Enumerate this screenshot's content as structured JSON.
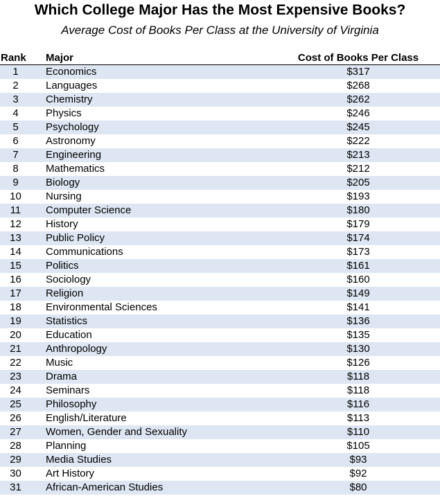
{
  "title": "Which College Major Has the Most Expensive Books?",
  "subtitle": "Average Cost of Books Per Class at the University of Virginia",
  "chart_data": {
    "type": "table",
    "columns": [
      "Rank",
      "Major",
      "Cost of Books Per Class"
    ],
    "rows": [
      {
        "rank": "1",
        "major": "Economics",
        "cost": "$317"
      },
      {
        "rank": "2",
        "major": "Languages",
        "cost": "$268"
      },
      {
        "rank": "3",
        "major": "Chemistry",
        "cost": "$262"
      },
      {
        "rank": "4",
        "major": "Physics",
        "cost": "$246"
      },
      {
        "rank": "5",
        "major": "Psychology",
        "cost": "$245"
      },
      {
        "rank": "6",
        "major": "Astronomy",
        "cost": "$222"
      },
      {
        "rank": "7",
        "major": "Engineering",
        "cost": "$213"
      },
      {
        "rank": "8",
        "major": "Mathematics",
        "cost": "$212"
      },
      {
        "rank": "9",
        "major": "Biology",
        "cost": "$205"
      },
      {
        "rank": "10",
        "major": "Nursing",
        "cost": "$193"
      },
      {
        "rank": "11",
        "major": "Computer Science",
        "cost": "$180"
      },
      {
        "rank": "12",
        "major": "History",
        "cost": "$179"
      },
      {
        "rank": "13",
        "major": "Public Policy",
        "cost": "$174"
      },
      {
        "rank": "14",
        "major": "Communications",
        "cost": "$173"
      },
      {
        "rank": "15",
        "major": "Politics",
        "cost": "$161"
      },
      {
        "rank": "16",
        "major": "Sociology",
        "cost": "$160"
      },
      {
        "rank": "17",
        "major": "Religion",
        "cost": "$149"
      },
      {
        "rank": "18",
        "major": "Environmental Sciences",
        "cost": "$141"
      },
      {
        "rank": "19",
        "major": "Statistics",
        "cost": "$136"
      },
      {
        "rank": "20",
        "major": "Education",
        "cost": "$135"
      },
      {
        "rank": "21",
        "major": "Anthropology",
        "cost": "$130"
      },
      {
        "rank": "22",
        "major": "Music",
        "cost": "$126"
      },
      {
        "rank": "23",
        "major": "Drama",
        "cost": "$118"
      },
      {
        "rank": "24",
        "major": "Seminars",
        "cost": "$118"
      },
      {
        "rank": "25",
        "major": "Philosophy",
        "cost": "$116"
      },
      {
        "rank": "26",
        "major": "English/Literature",
        "cost": "$113"
      },
      {
        "rank": "27",
        "major": "Women, Gender and Sexuality",
        "cost": "$110"
      },
      {
        "rank": "28",
        "major": "Planning",
        "cost": "$105"
      },
      {
        "rank": "29",
        "major": "Media Studies",
        "cost": "$93"
      },
      {
        "rank": "30",
        "major": "Art History",
        "cost": "$92"
      },
      {
        "rank": "31",
        "major": "African-American Studies",
        "cost": "$80"
      }
    ]
  },
  "colors": {
    "stripe": "#dde6f2",
    "background": "#ffffff",
    "text": "#000000"
  }
}
